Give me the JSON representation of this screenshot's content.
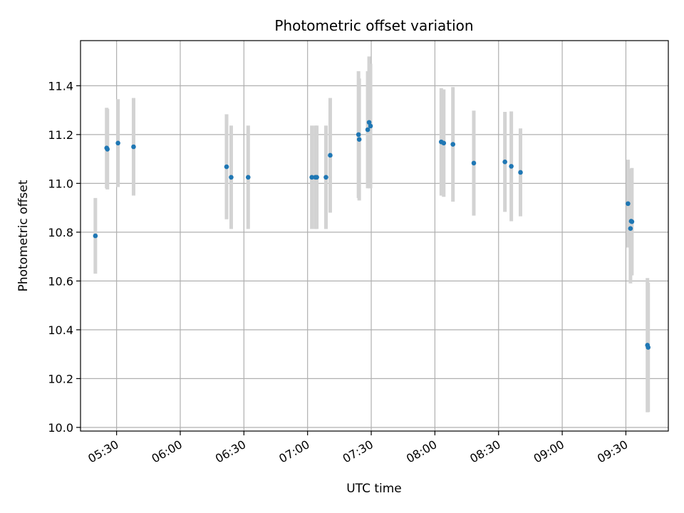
{
  "chart_data": {
    "type": "scatter",
    "title": "Photometric offset variation",
    "xlabel": "UTC time",
    "ylabel": "Photometric offset",
    "grid": true,
    "xlim": [
      "05:13",
      "09:50"
    ],
    "ylim": [
      9.985,
      11.585
    ],
    "x_ticks": [
      "05:30",
      "06:00",
      "06:30",
      "07:00",
      "07:30",
      "08:00",
      "08:30",
      "09:00",
      "09:30"
    ],
    "y_ticks": [
      "10.0",
      "10.2",
      "10.4",
      "10.6",
      "10.8",
      "11.0",
      "11.2",
      "11.4"
    ],
    "colors": {
      "point": "#1f77b4",
      "errorbar": "#d3d3d3",
      "grid": "#b0b0b0"
    },
    "points": [
      {
        "t": "05:20:00",
        "y": 10.785,
        "err": 0.155
      },
      {
        "t": "05:25:20",
        "y": 11.145,
        "err": 0.165
      },
      {
        "t": "05:25:40",
        "y": 11.14,
        "err": 0.165
      },
      {
        "t": "05:30:40",
        "y": 11.165,
        "err": 0.18
      },
      {
        "t": "05:38:00",
        "y": 11.15,
        "err": 0.2
      },
      {
        "t": "06:21:50",
        "y": 11.068,
        "err": 0.215
      },
      {
        "t": "06:24:00",
        "y": 11.025,
        "err": 0.212
      },
      {
        "t": "06:32:00",
        "y": 11.025,
        "err": 0.212
      },
      {
        "t": "07:02:00",
        "y": 11.025,
        "err": 0.212
      },
      {
        "t": "07:03:40",
        "y": 11.025,
        "err": 0.212
      },
      {
        "t": "07:04:20",
        "y": 11.025,
        "err": 0.212
      },
      {
        "t": "07:08:40",
        "y": 11.025,
        "err": 0.212
      },
      {
        "t": "07:10:40",
        "y": 11.115,
        "err": 0.235
      },
      {
        "t": "07:24:00",
        "y": 11.2,
        "err": 0.26
      },
      {
        "t": "07:24:20",
        "y": 11.18,
        "err": 0.25
      },
      {
        "t": "07:28:20",
        "y": 11.22,
        "err": 0.24
      },
      {
        "t": "07:29:00",
        "y": 11.25,
        "err": 0.27
      },
      {
        "t": "07:29:40",
        "y": 11.235,
        "err": 0.255
      },
      {
        "t": "08:03:00",
        "y": 11.17,
        "err": 0.22
      },
      {
        "t": "08:04:10",
        "y": 11.165,
        "err": 0.22
      },
      {
        "t": "08:08:30",
        "y": 11.16,
        "err": 0.235
      },
      {
        "t": "08:18:20",
        "y": 11.083,
        "err": 0.215
      },
      {
        "t": "08:33:00",
        "y": 11.088,
        "err": 0.205
      },
      {
        "t": "08:36:00",
        "y": 11.07,
        "err": 0.225
      },
      {
        "t": "08:40:20",
        "y": 11.045,
        "err": 0.18
      },
      {
        "t": "09:31:00",
        "y": 10.917,
        "err": 0.18
      },
      {
        "t": "09:32:10",
        "y": 10.815,
        "err": 0.225
      },
      {
        "t": "09:32:30",
        "y": 10.845,
        "err": 0.215
      },
      {
        "t": "09:32:50",
        "y": 10.843,
        "err": 0.22
      },
      {
        "t": "09:40:10",
        "y": 10.337,
        "err": 0.275
      },
      {
        "t": "09:40:30",
        "y": 10.328,
        "err": 0.265
      }
    ]
  }
}
